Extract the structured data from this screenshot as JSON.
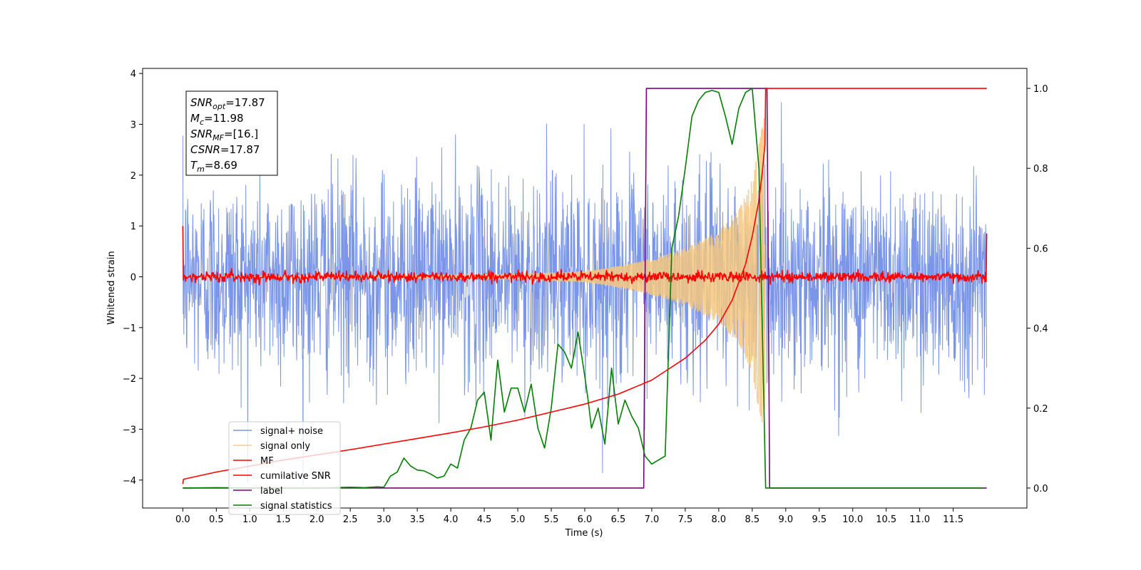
{
  "chart_data": {
    "type": "line",
    "title": "",
    "xlabel": "Time (s)",
    "ylabel": "Whitened strain",
    "y2label": "",
    "xlim": [
      -0.6,
      12.6
    ],
    "ylim": [
      -4.55,
      4.1
    ],
    "y2lim": [
      -0.05,
      1.05
    ],
    "xticks": [
      0.0,
      0.5,
      1.0,
      1.5,
      2.0,
      2.5,
      3.0,
      3.5,
      4.0,
      4.5,
      5.0,
      5.5,
      6.0,
      6.5,
      7.0,
      7.5,
      8.0,
      8.5,
      9.0,
      9.5,
      10.0,
      10.5,
      11.0,
      11.5
    ],
    "xtick_labels": [
      "0.0",
      "0.5",
      "1.0",
      "1.5",
      "2.0",
      "2.5",
      "3.0",
      "3.5",
      "4.0",
      "4.5",
      "5.0",
      "5.5",
      "6.0",
      "6.5",
      "7.0",
      "7.5",
      "8.0",
      "8.5",
      "9.0",
      "9.5",
      "10.0",
      "10.5",
      "11.0",
      "11.5"
    ],
    "yticks": [
      -4,
      -3,
      -2,
      -1,
      0,
      1,
      2,
      3,
      4
    ],
    "ytick_labels": [
      "−4",
      "−3",
      "−2",
      "−1",
      "0",
      "1",
      "2",
      "3",
      "4"
    ],
    "y2ticks": [
      0.0,
      0.2,
      0.4,
      0.6,
      0.8,
      1.0
    ],
    "y2tick_labels": [
      "0.0",
      "0.2",
      "0.4",
      "0.6",
      "0.8",
      "1.0"
    ],
    "grid": false,
    "legend_position": "lower-left",
    "annotation": [
      {
        "main": "SNR",
        "sub": "opt",
        "rest": "=17.87"
      },
      {
        "main": "M",
        "sub": "c",
        "rest": "=11.98"
      },
      {
        "main": "SNR",
        "sub": "MF",
        "rest": "=[16.]"
      },
      {
        "main": "CSNR",
        "sub": "",
        "rest": "=17.87"
      },
      {
        "main": "T",
        "sub": "m",
        "rest": "=8.69"
      }
    ],
    "series": [
      {
        "name": "signal+ noise",
        "axis": "left",
        "color": "#7b96e8",
        "kind": "noise",
        "x_range": [
          0.0,
          12.0
        ],
        "approx_std": 1.0,
        "approx_range": [
          -4.1,
          3.7
        ]
      },
      {
        "name": "signal only",
        "axis": "left",
        "color": "#f5c77e",
        "kind": "chirp",
        "x_range": [
          0.0,
          8.69
        ],
        "envelope": [
          [
            5.0,
            0.05
          ],
          [
            6.0,
            0.1
          ],
          [
            6.5,
            0.2
          ],
          [
            7.0,
            0.35
          ],
          [
            7.5,
            0.55
          ],
          [
            8.0,
            0.9
          ],
          [
            8.3,
            1.3
          ],
          [
            8.5,
            1.9
          ],
          [
            8.6,
            2.6
          ],
          [
            8.69,
            3.3
          ]
        ]
      },
      {
        "name": "MF",
        "axis": "left",
        "color": "#ff0000",
        "kind": "noise",
        "x_range": [
          0.0,
          12.0
        ],
        "approx_std": 0.05,
        "edge_values": [
          1.0,
          0.85
        ]
      },
      {
        "name": "cumilative SNR",
        "axis": "right",
        "color": "#ff0000",
        "x": [
          0.0,
          0.01,
          0.5,
          1.0,
          1.5,
          2.0,
          2.5,
          3.0,
          3.5,
          4.0,
          4.5,
          5.0,
          5.5,
          6.0,
          6.5,
          7.0,
          7.5,
          7.8,
          8.0,
          8.2,
          8.4,
          8.5,
          8.6,
          8.65,
          8.69,
          8.7,
          12.0
        ],
        "y": [
          0.01,
          0.022,
          0.04,
          0.055,
          0.07,
          0.083,
          0.096,
          0.11,
          0.124,
          0.138,
          0.153,
          0.17,
          0.19,
          0.21,
          0.235,
          0.27,
          0.325,
          0.37,
          0.41,
          0.47,
          0.56,
          0.63,
          0.72,
          0.79,
          0.86,
          1.0,
          1.0
        ]
      },
      {
        "name": "label",
        "axis": "right",
        "color": "#800080",
        "x": [
          0.0,
          6.88,
          6.92,
          8.72,
          8.76,
          12.0
        ],
        "y": [
          0.0,
          0.0,
          1.0,
          1.0,
          0.0,
          0.0
        ]
      },
      {
        "name": "signal statistics",
        "axis": "right",
        "color": "#008000",
        "x": [
          0.0,
          0.5,
          1.0,
          1.5,
          2.0,
          2.5,
          2.7,
          2.9,
          3.0,
          3.1,
          3.2,
          3.3,
          3.4,
          3.5,
          3.6,
          3.7,
          3.8,
          3.9,
          4.0,
          4.1,
          4.2,
          4.3,
          4.4,
          4.5,
          4.6,
          4.7,
          4.8,
          4.9,
          5.0,
          5.1,
          5.2,
          5.3,
          5.4,
          5.5,
          5.6,
          5.7,
          5.8,
          5.9,
          6.0,
          6.05,
          6.1,
          6.2,
          6.3,
          6.4,
          6.5,
          6.6,
          6.7,
          6.8,
          6.9,
          7.0,
          7.1,
          7.2,
          7.3,
          7.4,
          7.5,
          7.6,
          7.7,
          7.8,
          7.9,
          8.0,
          8.1,
          8.2,
          8.3,
          8.4,
          8.5,
          8.6,
          8.7,
          8.8,
          9.0,
          9.5,
          10.0,
          11.0,
          11.5,
          11.95
        ],
        "y": [
          0.0,
          0.001,
          0.0,
          0.0,
          0.0,
          0.002,
          0.001,
          0.003,
          0.002,
          0.03,
          0.04,
          0.075,
          0.055,
          0.045,
          0.043,
          0.035,
          0.025,
          0.03,
          0.06,
          0.05,
          0.12,
          0.15,
          0.22,
          0.24,
          0.12,
          0.32,
          0.19,
          0.25,
          0.25,
          0.19,
          0.26,
          0.15,
          0.1,
          0.2,
          0.36,
          0.34,
          0.3,
          0.39,
          0.28,
          0.22,
          0.15,
          0.2,
          0.11,
          0.3,
          0.16,
          0.22,
          0.18,
          0.15,
          0.08,
          0.06,
          0.07,
          0.08,
          0.6,
          0.68,
          0.8,
          0.93,
          0.97,
          0.99,
          0.995,
          0.99,
          0.93,
          0.86,
          0.95,
          0.99,
          1.0,
          0.8,
          0.0,
          0.0,
          0.0,
          0.0,
          0.0,
          0.0,
          0.0,
          0.0
        ]
      }
    ]
  }
}
